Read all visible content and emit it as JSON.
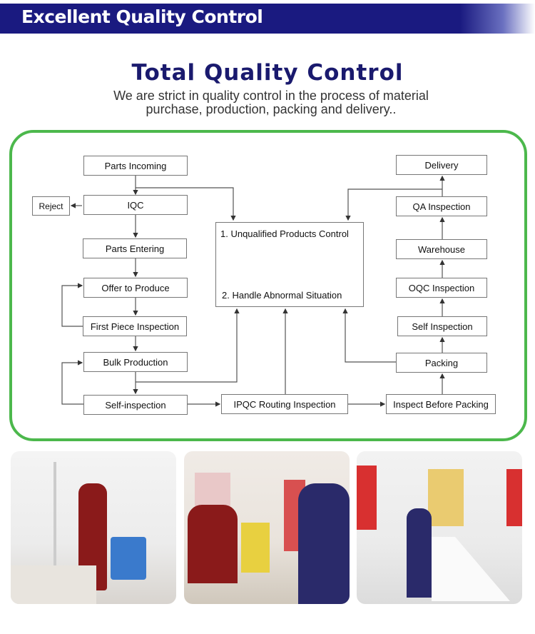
{
  "banner": {
    "title": "Excellent Quality Control"
  },
  "heading": {
    "title": "Total Quality Control",
    "subtitle_line1": "We are strict in quality control in the process of material",
    "subtitle_line2": "purchase, production, packing and delivery.."
  },
  "flow": {
    "parts_incoming": "Parts Incoming",
    "iqc": "IQC",
    "reject": "Reject",
    "parts_entering": "Parts Entering",
    "offer_to_produce": "Offer to Produce",
    "first_piece": "First Piece Inspection",
    "bulk_production": "Bulk Production",
    "self_inspection_left": "Self-inspection",
    "ipqc": "IPQC Routing Inspection",
    "inspect_before_packing": "Inspect Before Packing",
    "packing": "Packing",
    "self_inspection_right": "Self Inspection",
    "oqc": "OQC Inspection",
    "warehouse": "Warehouse",
    "qa": "QA Inspection",
    "delivery": "Delivery",
    "control_1": "1. Unqualified Products Control",
    "control_2": "2. Handle Abnormal Situation"
  },
  "colors": {
    "banner": "#1a1a80",
    "title": "#1a1a6e",
    "frame": "#4cb84c"
  }
}
